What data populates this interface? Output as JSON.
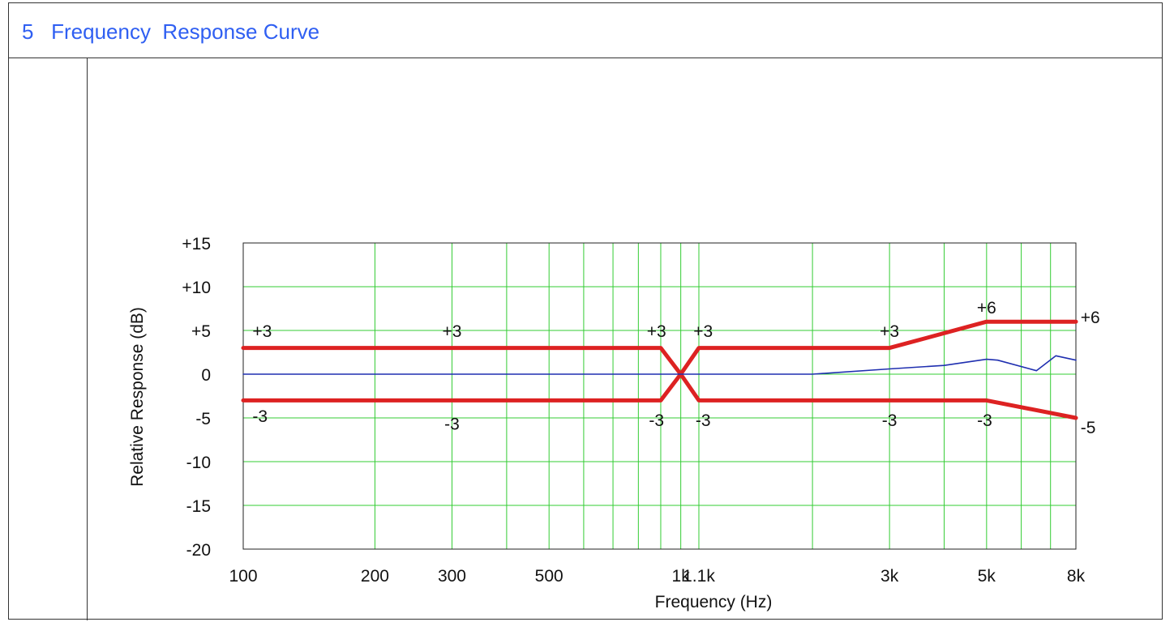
{
  "section": {
    "number": "5",
    "title": "Frequency  Response Curve"
  },
  "chart_data": {
    "type": "line",
    "title": "",
    "xlabel": "Frequency (Hz)",
    "ylabel": "Relative Response  (dB)",
    "x_scale": "log",
    "xlim": [
      100,
      8000
    ],
    "ylim": [
      -20,
      15
    ],
    "grid": true,
    "y_ticks": [
      15,
      10,
      5,
      0,
      -5,
      -10,
      -15,
      -20
    ],
    "y_tick_labels": [
      "+15",
      "+10",
      "+5",
      "0",
      "-5",
      "-10",
      "-15",
      "-20"
    ],
    "x_ticks": [
      100,
      200,
      300,
      500,
      1000,
      1100,
      3000,
      5000,
      8000
    ],
    "x_tick_labels": [
      "100",
      "200",
      "300",
      "500",
      "1k",
      "1.1k",
      "3k",
      "5k",
      "8k"
    ],
    "x_gridlines": [
      200,
      300,
      400,
      500,
      600,
      700,
      800,
      900,
      1000,
      1100,
      2000,
      3000,
      4000,
      5000,
      6000,
      7000,
      8000
    ],
    "colors": {
      "limit": "#dd2222",
      "response": "#1f2fb0",
      "grid": "#33cc33",
      "axis_text": "#111111"
    },
    "series": [
      {
        "role": "upper_limit",
        "x": [
          100,
          900,
          1000,
          1100,
          3000,
          5000,
          8000
        ],
        "y": [
          3,
          3,
          0,
          3,
          3,
          6,
          6
        ]
      },
      {
        "role": "lower_limit",
        "x": [
          100,
          900,
          1000,
          1100,
          5000,
          8000
        ],
        "y": [
          -3,
          -3,
          0,
          -3,
          -3,
          -5
        ]
      },
      {
        "role": "measured_response",
        "x": [
          100,
          500,
          1000,
          2000,
          3000,
          4000,
          5000,
          5300,
          6500,
          7200,
          8000
        ],
        "y": [
          0,
          0,
          0,
          0,
          0.6,
          1.0,
          1.7,
          1.6,
          0.4,
          2.1,
          1.6
        ]
      }
    ],
    "annotations": [
      {
        "text": "+3",
        "x": 105,
        "y": 4.9
      },
      {
        "text": "+3",
        "x": 300,
        "y": 4.9
      },
      {
        "text": "+3",
        "x": 880,
        "y": 4.9
      },
      {
        "text": "+3",
        "x": 1125,
        "y": 4.9
      },
      {
        "text": "+3",
        "x": 3000,
        "y": 4.9
      },
      {
        "text": "+6",
        "x": 5000,
        "y": 7.6
      },
      {
        "text": "+6",
        "x": 8200,
        "y": 6.5
      },
      {
        "text": "-3",
        "x": 105,
        "y": -4.8
      },
      {
        "text": "-3",
        "x": 300,
        "y": -5.7
      },
      {
        "text": "-3",
        "x": 880,
        "y": -5.3
      },
      {
        "text": "-3",
        "x": 1125,
        "y": -5.3
      },
      {
        "text": "-3",
        "x": 3000,
        "y": -5.3
      },
      {
        "text": "-3",
        "x": 4950,
        "y": -5.3
      },
      {
        "text": "-5",
        "x": 8200,
        "y": -6.1
      }
    ]
  }
}
